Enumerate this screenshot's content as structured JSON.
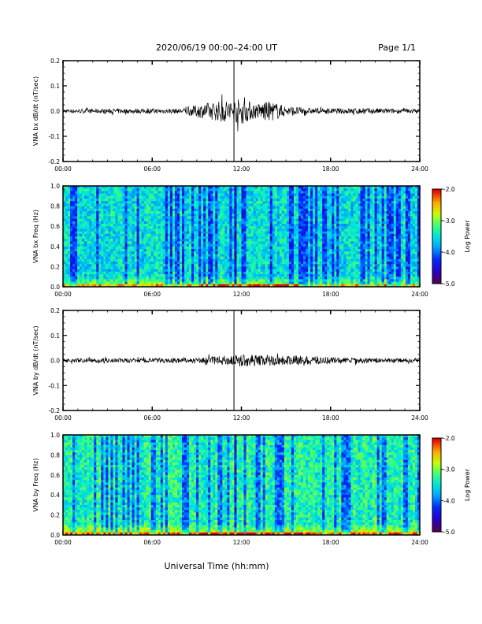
{
  "header": {
    "title": "2020/06/19  00:00–24:00 UT",
    "page": "Page 1/1"
  },
  "xlabel": "Universal Time (hh:mm)",
  "chart_data": [
    {
      "type": "line",
      "ylabel": "VNA bx dB/dt (nT/sec)",
      "x": [
        "00:00",
        "06:00",
        "12:00",
        "18:00",
        "24:00"
      ],
      "xlim": [
        0,
        24
      ],
      "ylim": [
        -0.2,
        0.2
      ],
      "yticks": [
        "0.2",
        "0.1",
        "0.0",
        "-0.1",
        "-0.2"
      ],
      "baseline": 0.0,
      "noise_amplitude_envelope": [
        {
          "t": 0,
          "amp": 0.008
        },
        {
          "t": 8,
          "amp": 0.01
        },
        {
          "t": 9,
          "amp": 0.025
        },
        {
          "t": 10,
          "amp": 0.035
        },
        {
          "t": 11,
          "amp": 0.045
        },
        {
          "t": 12,
          "amp": 0.05
        },
        {
          "t": 13,
          "amp": 0.03
        },
        {
          "t": 14,
          "amp": 0.04
        },
        {
          "t": 15,
          "amp": 0.02
        },
        {
          "t": 17,
          "amp": 0.01
        },
        {
          "t": 20,
          "amp": 0.012
        },
        {
          "t": 24,
          "amp": 0.008
        }
      ],
      "spike": {
        "t": 11.5,
        "min": -0.2,
        "max": 0.2
      }
    },
    {
      "type": "heatmap",
      "ylabel": "VNA bx Freq (Hz)",
      "x": [
        "00:00",
        "06:00",
        "12:00",
        "18:00",
        "24:00"
      ],
      "xlim": [
        0,
        24
      ],
      "ylim": [
        0.0,
        1.0
      ],
      "yticks": [
        "1.0",
        "0.8",
        "0.6",
        "0.4",
        "0.2",
        "0.0"
      ],
      "colorbar": {
        "label": "Log Power",
        "ticks": [
          "-2.0",
          "-3.0",
          "-4.0",
          "-5.0"
        ],
        "range": [
          -5.0,
          -2.0
        ]
      }
    },
    {
      "type": "line",
      "ylabel": "VNA by dB/dt (nT/sec)",
      "x": [
        "00:00",
        "06:00",
        "12:00",
        "18:00",
        "24:00"
      ],
      "xlim": [
        0,
        24
      ],
      "ylim": [
        -0.2,
        0.2
      ],
      "yticks": [
        "0.2",
        "0.1",
        "0.0",
        "-0.1",
        "-0.2"
      ],
      "baseline": 0.0,
      "noise_amplitude_envelope": [
        {
          "t": 0,
          "amp": 0.008
        },
        {
          "t": 9,
          "amp": 0.01
        },
        {
          "t": 11,
          "amp": 0.02
        },
        {
          "t": 12,
          "amp": 0.025
        },
        {
          "t": 14,
          "amp": 0.02
        },
        {
          "t": 17,
          "amp": 0.018
        },
        {
          "t": 20,
          "amp": 0.01
        },
        {
          "t": 24,
          "amp": 0.008
        }
      ],
      "spike": {
        "t": 11.5,
        "min": -0.2,
        "max": 0.2
      }
    },
    {
      "type": "heatmap",
      "ylabel": "VNA by Freq (Hz)",
      "x": [
        "00:00",
        "06:00",
        "12:00",
        "18:00",
        "24:00"
      ],
      "xlim": [
        0,
        24
      ],
      "ylim": [
        0.0,
        1.0
      ],
      "yticks": [
        "1.0",
        "0.8",
        "0.6",
        "0.4",
        "0.2",
        "0.0"
      ],
      "colorbar": {
        "label": "Log Power",
        "ticks": [
          "-2.0",
          "-3.0",
          "-4.0",
          "-5.0"
        ],
        "range": [
          -5.0,
          -2.0
        ]
      }
    }
  ]
}
